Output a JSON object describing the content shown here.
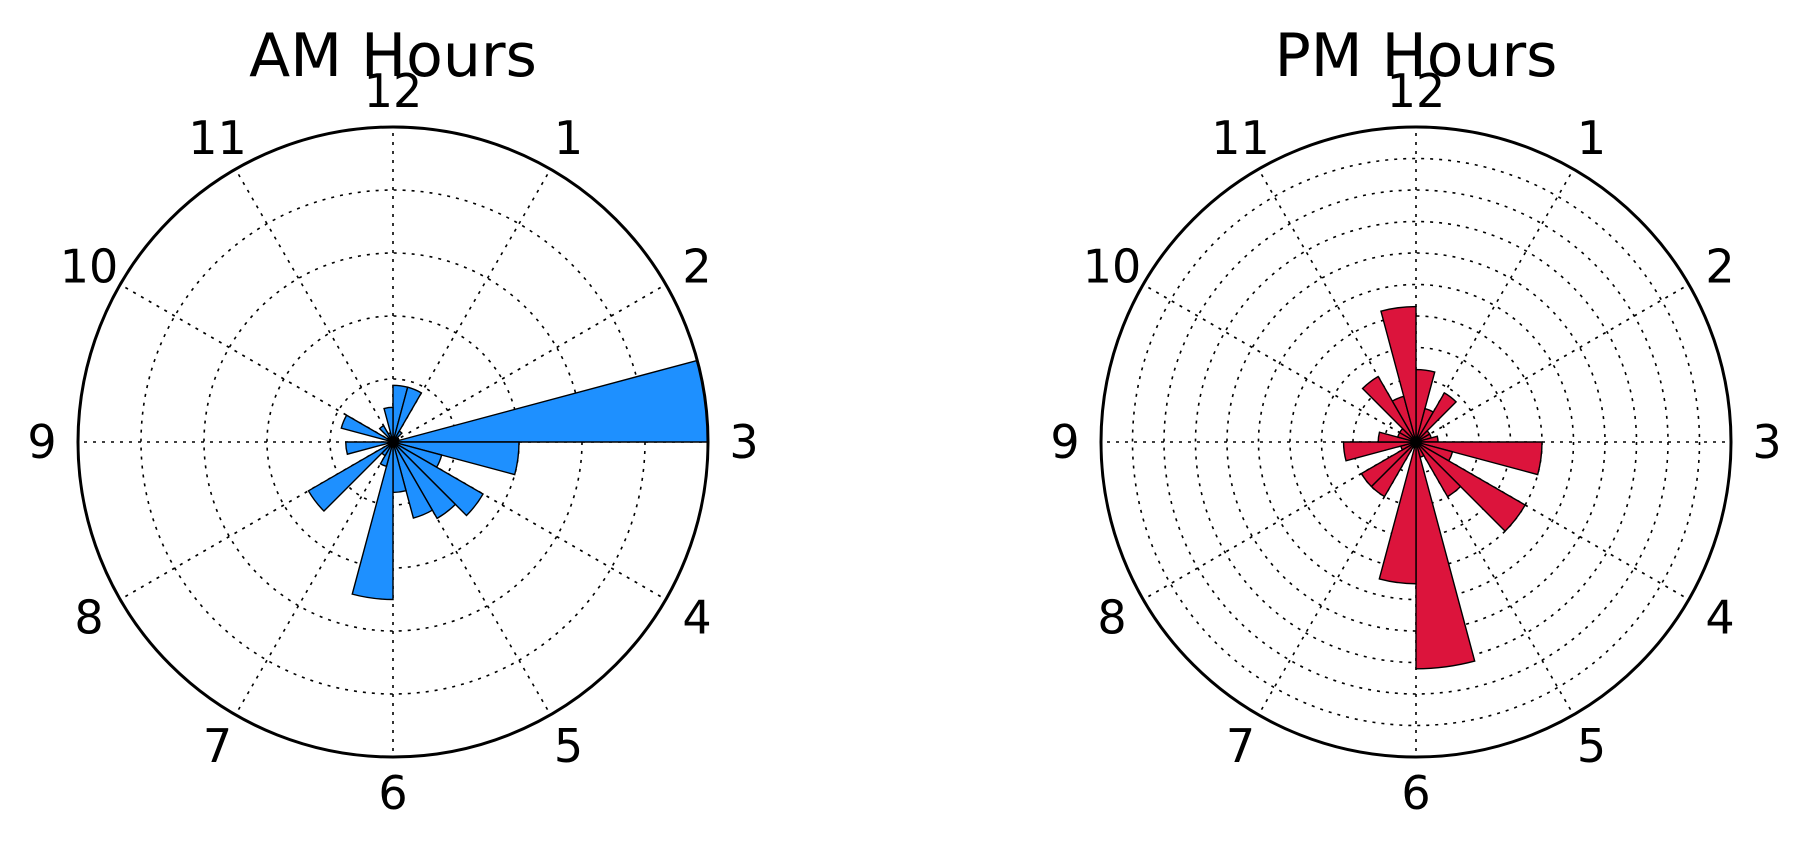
{
  "chart_data": [
    {
      "type": "polar-bar",
      "title": "AM Hours",
      "color": "#1E90FF",
      "hour_labels": [
        "12",
        "1",
        "2",
        "3",
        "4",
        "5",
        "6",
        "7",
        "8",
        "9",
        "10",
        "11"
      ],
      "bins": 24,
      "radial_max": 10,
      "rings": [
        2,
        4,
        6,
        8,
        10
      ],
      "values": [
        1.8,
        1.8,
        0.4,
        0.2,
        0.2,
        10.0,
        4.0,
        1.6,
        3.3,
        2.8,
        2.5,
        1.6,
        5.0,
        0.8,
        0.5,
        3.1,
        0.1,
        1.5,
        0.1,
        1.7,
        0.2,
        0.6,
        0.3,
        1.1
      ],
      "grid": true
    },
    {
      "type": "polar-bar",
      "title": "PM Hours",
      "color": "#DC143C",
      "hour_labels": [
        "12",
        "1",
        "2",
        "3",
        "4",
        "5",
        "6",
        "7",
        "8",
        "9",
        "10",
        "11"
      ],
      "bins": 24,
      "radial_max": 100,
      "rings": [
        10,
        20,
        30,
        40,
        50,
        60,
        70,
        80,
        90,
        100
      ],
      "values": [
        23,
        11,
        18,
        5,
        5,
        7,
        40,
        12,
        40,
        20,
        5,
        72,
        45,
        2,
        20,
        20,
        5,
        23,
        12,
        6,
        6,
        24,
        15,
        43
      ],
      "grid": true
    }
  ]
}
